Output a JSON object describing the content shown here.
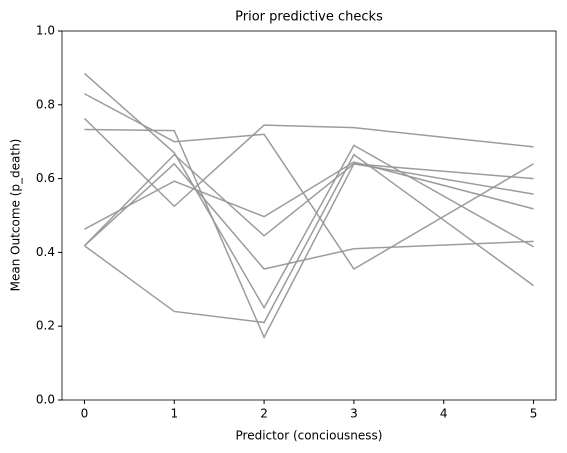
{
  "chart_data": {
    "type": "line",
    "title": "Prior predictive checks",
    "xlabel": "Predictor (conciousness)",
    "ylabel": "Mean Outcome (p_death)",
    "x": [
      0,
      1,
      2,
      3,
      5
    ],
    "series": [
      {
        "color": "#979797",
        "values": [
          0.733,
          0.73,
          0.17,
          0.64,
          0.6
        ]
      },
      {
        "color": "#979797",
        "values": [
          0.83,
          0.7,
          0.72,
          0.355,
          0.64
        ]
      },
      {
        "color": "#979797",
        "values": [
          0.885,
          0.67,
          0.25,
          0.69,
          0.415
        ]
      },
      {
        "color": "#979797",
        "values": [
          0.763,
          0.525,
          0.745,
          0.738,
          0.686
        ]
      },
      {
        "color": "#979797",
        "values": [
          0.463,
          0.593,
          0.497,
          0.645,
          0.518
        ]
      },
      {
        "color": "#979797",
        "values": [
          0.418,
          0.64,
          0.355,
          0.41,
          0.43
        ]
      },
      {
        "color": "#979797",
        "values": [
          0.418,
          0.665,
          0.445,
          0.64,
          0.558
        ]
      },
      {
        "color": "#979797",
        "values": [
          0.418,
          0.24,
          0.21,
          0.665,
          0.31
        ]
      }
    ],
    "xlim": [
      -0.25,
      5.25
    ],
    "xticks": [
      0,
      1,
      2,
      3,
      4,
      5
    ],
    "ylim": [
      0,
      1
    ],
    "yticks": [
      {
        "value": 0,
        "label": "0.0"
      },
      {
        "value": 0.2,
        "label": "0.2"
      },
      {
        "value": 0.4,
        "label": "0.4"
      },
      {
        "value": 0.6,
        "label": "0.6"
      },
      {
        "value": 0.8,
        "label": "0.8"
      },
      {
        "value": 1,
        "label": "1.0"
      }
    ],
    "grid": false
  }
}
